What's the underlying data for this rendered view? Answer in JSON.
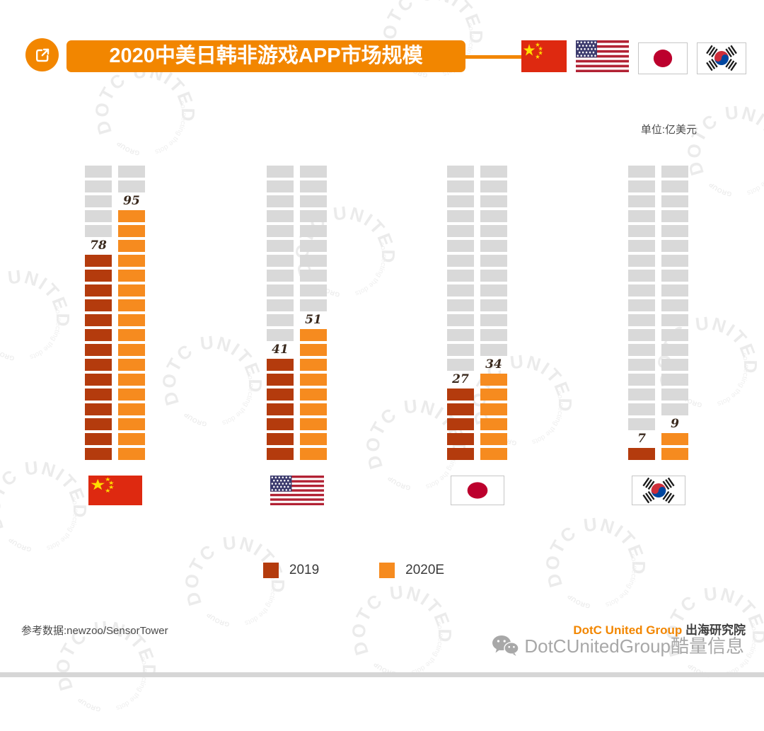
{
  "header": {
    "title": "2020中美日韩非游戏APP市场规模",
    "flags": [
      "china",
      "usa",
      "japan",
      "korea"
    ]
  },
  "unit_label": "单位:亿美元",
  "chart_data": {
    "type": "bar",
    "subtype": "brick-stack",
    "title": "2020中美日韩非游戏APP市场规模",
    "unit": "亿美元",
    "categories": [
      "中国",
      "美国",
      "日本",
      "韩国"
    ],
    "category_flags": [
      "china",
      "usa",
      "japan",
      "korea"
    ],
    "series": [
      {
        "name": "2019",
        "color": "#b43b0d",
        "values": [
          78,
          41,
          27,
          7
        ]
      },
      {
        "name": "2020E",
        "color": "#f68b1f",
        "values": [
          95,
          51,
          34,
          9
        ]
      }
    ],
    "ylim": [
      0,
      110
    ],
    "bricks_total": 20,
    "value_per_brick": 5.5,
    "grid": false,
    "legend_position": "bottom",
    "track_color": "#d9d9d9"
  },
  "legend": {
    "items": [
      {
        "label": "2019",
        "color": "#b43b0d"
      },
      {
        "label": "2020E",
        "color": "#f68b1f"
      }
    ]
  },
  "footer": {
    "source": "参考数据:newzoo/SensorTower",
    "brand_orange": "DotC United Group",
    "brand_suffix": " 出海研究院",
    "watermark_brand": "DotCUnitedGroup酷量信息"
  },
  "watermark": {
    "line1": "DOTC UNITED",
    "line2": "connecting the dots",
    "badge": "GROUP"
  },
  "colors": {
    "accent": "#f28600",
    "brick_2019": "#b43b0d",
    "brick_2020e": "#f68b1f",
    "track": "#d9d9d9",
    "value_label": "#3a2a1e"
  }
}
